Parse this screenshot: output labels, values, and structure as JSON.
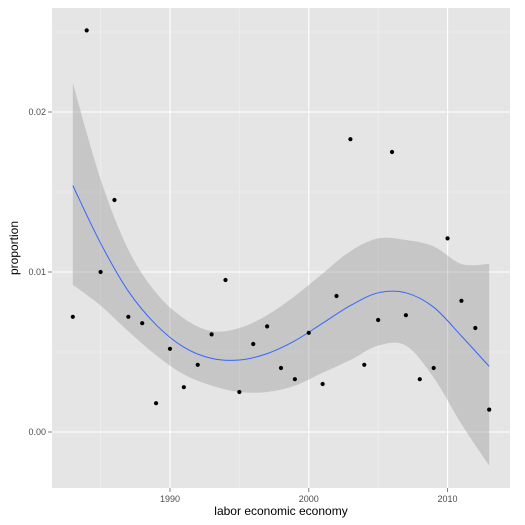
{
  "chart_data": {
    "type": "scatter",
    "xlabel": "labor economic economy",
    "ylabel": "proportion",
    "xlim": [
      1981.5,
      2014.5
    ],
    "ylim": [
      -0.0035,
      0.0265
    ],
    "x_ticks": [
      1990,
      2000,
      2010
    ],
    "x_tick_labels": [
      "1990",
      "2000",
      "2010"
    ],
    "y_ticks": [
      0.0,
      0.01,
      0.02
    ],
    "y_tick_labels": [
      "0.00",
      "0.01",
      "0.02"
    ],
    "grid": true,
    "legend": "none",
    "colors": {
      "panel": "#e5e5e5",
      "grid_major": "#ffffff",
      "grid_minor": "#f2f2f2",
      "points": "#000000",
      "smooth_line": "#3366ff",
      "confidence_band": "#999999"
    },
    "points": {
      "x": [
        1983,
        1984,
        1985,
        1986,
        1987,
        1988,
        1989,
        1990,
        1991,
        1992,
        1993,
        1994,
        1995,
        1996,
        1997,
        1998,
        1999,
        2000,
        2001,
        2002,
        2003,
        2004,
        2005,
        2006,
        2007,
        2008,
        2009,
        2010,
        2011,
        2012,
        2013
      ],
      "y": [
        0.0072,
        0.0251,
        0.01,
        0.0145,
        0.0072,
        0.0068,
        0.0018,
        0.0052,
        0.0028,
        0.0042,
        0.0061,
        0.0095,
        0.0025,
        0.0055,
        0.0066,
        0.004,
        0.0033,
        0.0062,
        0.003,
        0.0085,
        0.0183,
        0.0042,
        0.007,
        0.0175,
        0.0073,
        0.0033,
        0.004,
        0.0121,
        0.0082,
        0.0065,
        0.0014
      ]
    },
    "smooth": {
      "x": [
        1983,
        1985,
        1987,
        1989,
        1991,
        1993,
        1995,
        1997,
        1999,
        2001,
        2003,
        2005,
        2007,
        2009,
        2011,
        2013
      ],
      "y": [
        0.0154,
        0.0118,
        0.0088,
        0.0067,
        0.0053,
        0.0046,
        0.0045,
        0.0049,
        0.0057,
        0.0068,
        0.0079,
        0.0087,
        0.0087,
        0.0078,
        0.006,
        0.0041
      ],
      "ymin": [
        0.0092,
        0.0079,
        0.0063,
        0.0048,
        0.0036,
        0.0029,
        0.0025,
        0.0025,
        0.0029,
        0.0037,
        0.0045,
        0.0054,
        0.0054,
        0.0034,
        0.0005,
        -0.0021
      ],
      "ymax": [
        0.0218,
        0.0158,
        0.0114,
        0.0087,
        0.0071,
        0.0063,
        0.0065,
        0.0073,
        0.0085,
        0.0099,
        0.0113,
        0.0121,
        0.012,
        0.0116,
        0.0105,
        0.0105
      ]
    }
  }
}
